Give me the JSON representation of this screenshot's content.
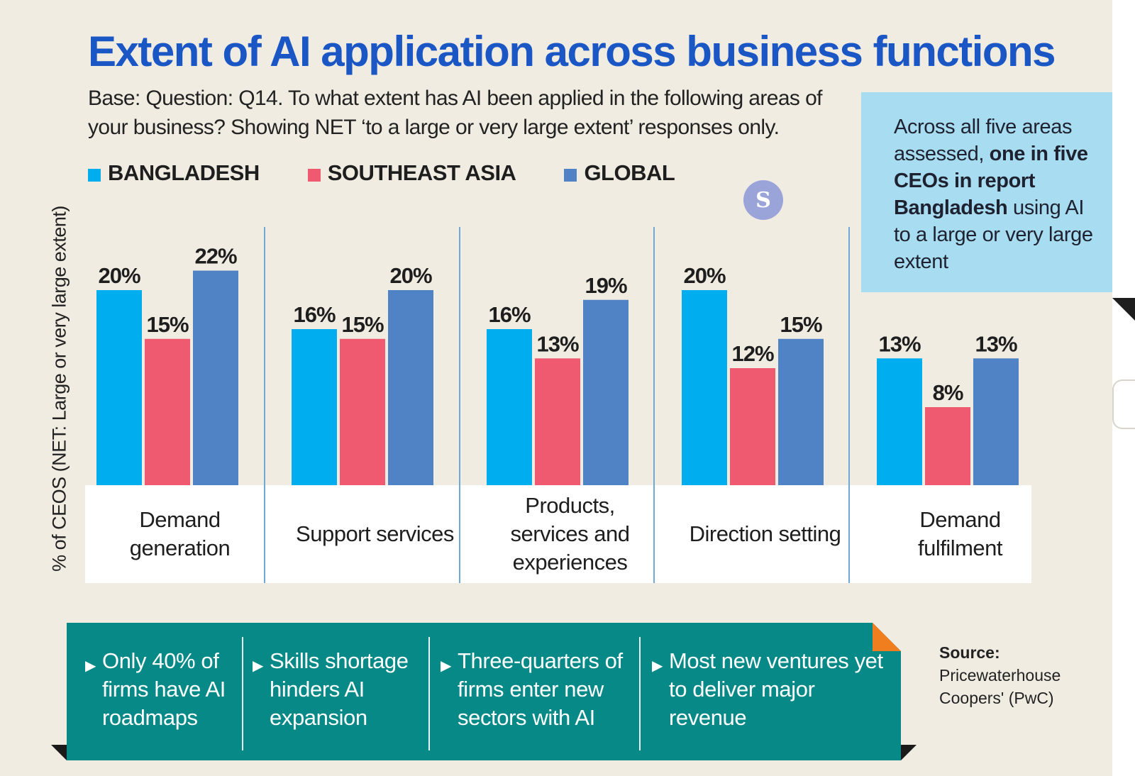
{
  "title": "Extent of AI application across business functions",
  "subtitle": "Base: Question: Q14. To what extent has AI been applied in the following areas of your business? Showing NET ‘to a large or very large extent’ responses only.",
  "logo_text": "S",
  "callout": {
    "part1": "Across all five areas assessed, ",
    "bold": "one in five CEOs in report Bangladesh",
    "part2": " using AI to a large or very large extent"
  },
  "takeaways": [
    "Only 40% of firms have AI roadmaps",
    "Skills shortage hinders AI expansion",
    "Three-quarters of firms enter new sectors with AI",
    "Most new ventures yet to deliver major revenue"
  ],
  "takeaway_arrow": "▶",
  "source": {
    "label": "Source:",
    "text": "Pricewaterhouse Coopers' (PwC)"
  },
  "colors": {
    "bangladesh": "#00aeef",
    "southeast_asia": "#f05a70",
    "global": "#4f83c6",
    "title": "#1a56c4",
    "callout_bg": "#a8dcf0",
    "takeaway_bg": "#078a87",
    "accent_fold": "#f07e1e",
    "background": "#f0ece2"
  },
  "chart_data": {
    "type": "bar",
    "title": "Extent of AI application across business functions",
    "ylabel": "% of CEOS (NET: Large or very large extent)",
    "xlabel": "",
    "ylim": [
      0,
      25
    ],
    "grid": false,
    "legend_position": "top-left",
    "categories": [
      "Demand generation",
      "Support services",
      "Products, services and experiences",
      "Direction setting",
      "Demand fulfilment"
    ],
    "series": [
      {
        "name": "BANGLADESH",
        "color": "#00aeef",
        "values": [
          20,
          16,
          16,
          20,
          13
        ]
      },
      {
        "name": "SOUTHEAST ASIA",
        "color": "#f05a70",
        "values": [
          15,
          15,
          13,
          12,
          8
        ]
      },
      {
        "name": "GLOBAL",
        "color": "#4f83c6",
        "values": [
          22,
          20,
          19,
          15,
          13
        ]
      }
    ],
    "value_suffix": "%"
  }
}
